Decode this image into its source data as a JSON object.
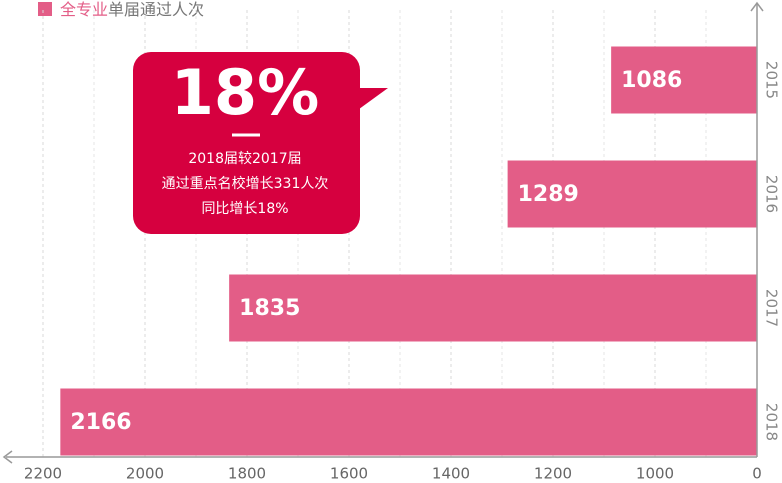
{
  "chart_data": {
    "type": "bar",
    "orientation": "horizontal",
    "x_reversed": true,
    "legend_parts": [
      "全专业",
      "单届通过人次"
    ],
    "categories": [
      "2015",
      "2016",
      "2017",
      "2018"
    ],
    "values": [
      1086,
      1289,
      1835,
      2166
    ],
    "color": "#e35d87",
    "xlim": [
      0,
      2200
    ],
    "xticks": [
      0,
      1000,
      1200,
      1400,
      1600,
      1800,
      2000,
      2200
    ],
    "grid": true,
    "callout": {
      "headline": "18%",
      "lines": [
        "2018届较2017届",
        "通过重点名校增长331人次",
        "同比增长18%"
      ]
    }
  }
}
